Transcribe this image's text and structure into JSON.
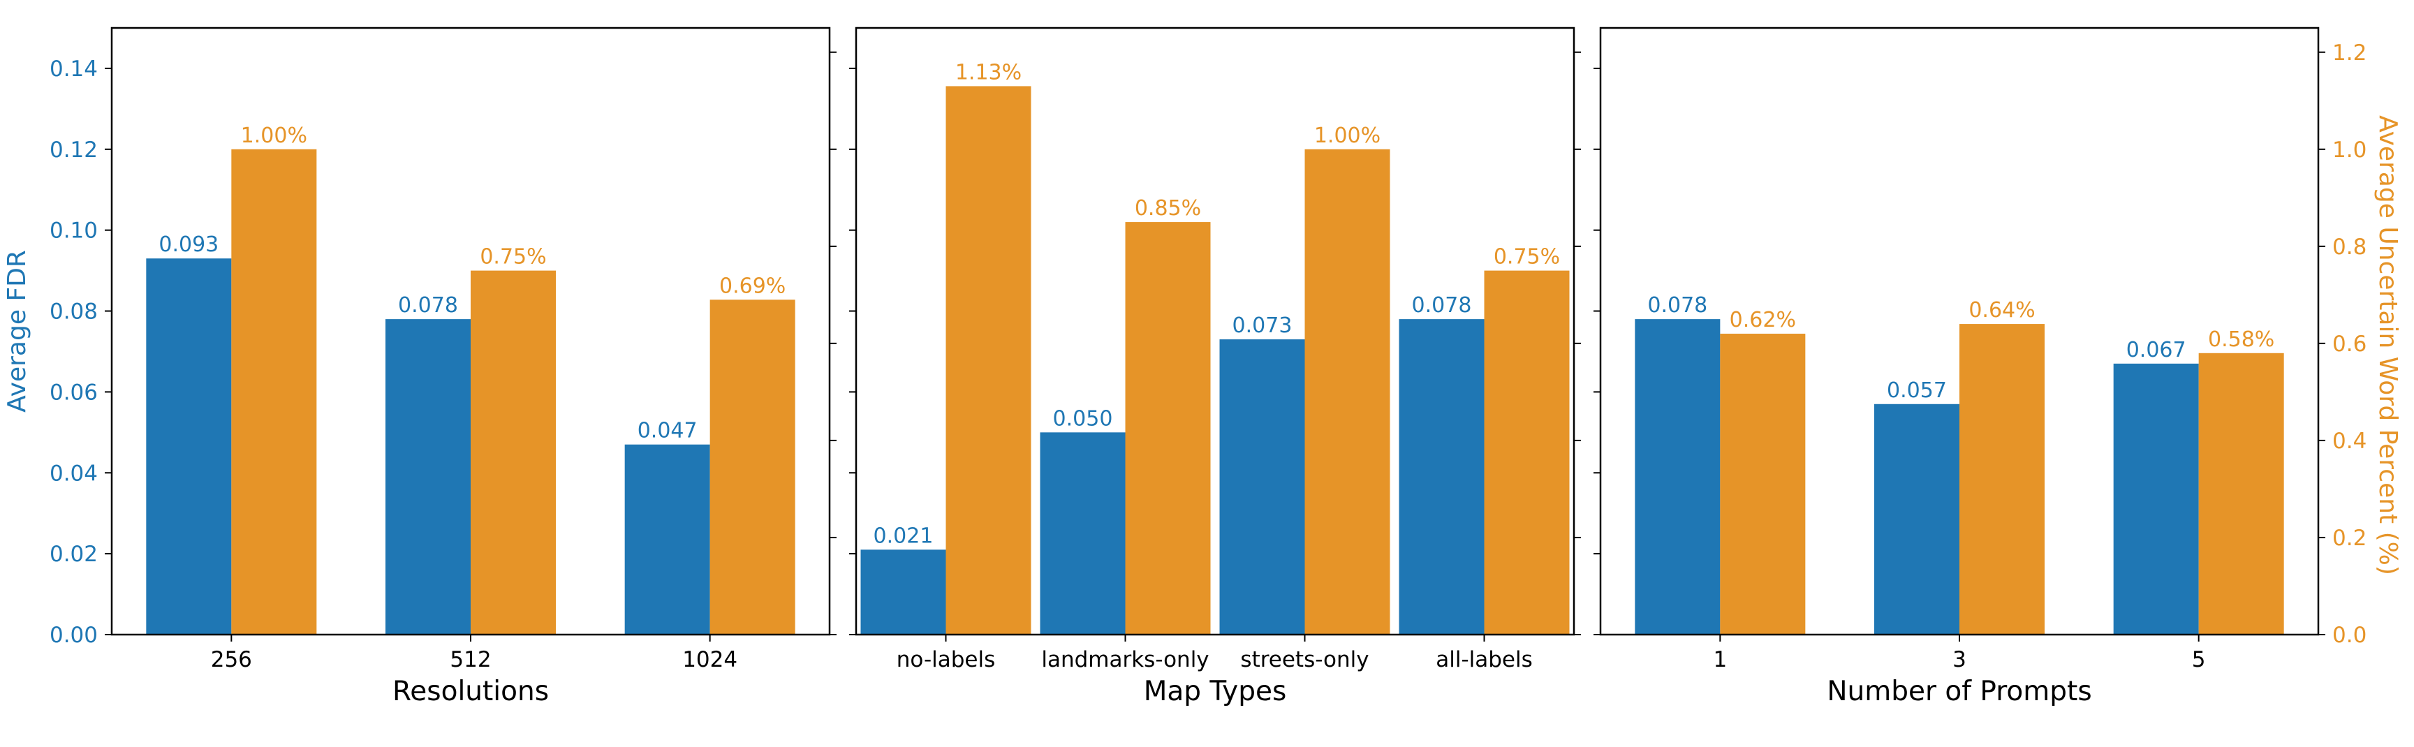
{
  "colors": {
    "fdr": "#1f77b4",
    "uncertain": "#e69428",
    "fdr_text": "#1f77b4",
    "uncertain_text": "#e69428",
    "axis": "#000000"
  },
  "left_axis": {
    "label": "Average FDR",
    "ylim": [
      0,
      0.15
    ],
    "ticks": [
      "0.00",
      "0.02",
      "0.04",
      "0.06",
      "0.08",
      "0.10",
      "0.12",
      "0.14"
    ]
  },
  "right_axis": {
    "label": "Average Uncertain Word Percent (%)",
    "ylim": [
      0,
      1.25
    ],
    "ticks": [
      "0.0",
      "0.2",
      "0.4",
      "0.6",
      "0.8",
      "1.0",
      "1.2"
    ]
  },
  "chart_data": [
    {
      "type": "bar",
      "xlabel": "Resolutions",
      "categories": [
        "256",
        "512",
        "1024"
      ],
      "series": [
        {
          "values": [
            0.093,
            0.078,
            0.047
          ],
          "labels": [
            "0.093",
            "0.078",
            "0.047"
          ]
        },
        {
          "values": [
            1.0,
            0.75,
            0.69
          ],
          "labels": [
            "1.00%",
            "0.75%",
            "0.69%"
          ]
        }
      ]
    },
    {
      "type": "bar",
      "xlabel": "Map Types",
      "categories": [
        "no-labels",
        "landmarks-only",
        "streets-only",
        "all-labels"
      ],
      "series": [
        {
          "values": [
            0.021,
            0.05,
            0.073,
            0.078
          ],
          "labels": [
            "0.021",
            "0.050",
            "0.073",
            "0.078"
          ]
        },
        {
          "values": [
            1.13,
            0.85,
            1.0,
            0.75
          ],
          "labels": [
            "1.13%",
            "0.85%",
            "1.00%",
            "0.75%"
          ]
        }
      ]
    },
    {
      "type": "bar",
      "xlabel": "Number of Prompts",
      "categories": [
        "1",
        "3",
        "5"
      ],
      "series": [
        {
          "values": [
            0.078,
            0.057,
            0.067
          ],
          "labels": [
            "0.078",
            "0.057",
            "0.067"
          ]
        },
        {
          "values": [
            0.62,
            0.64,
            0.58
          ],
          "labels": [
            "0.62%",
            "0.64%",
            "0.58%"
          ]
        }
      ]
    }
  ]
}
